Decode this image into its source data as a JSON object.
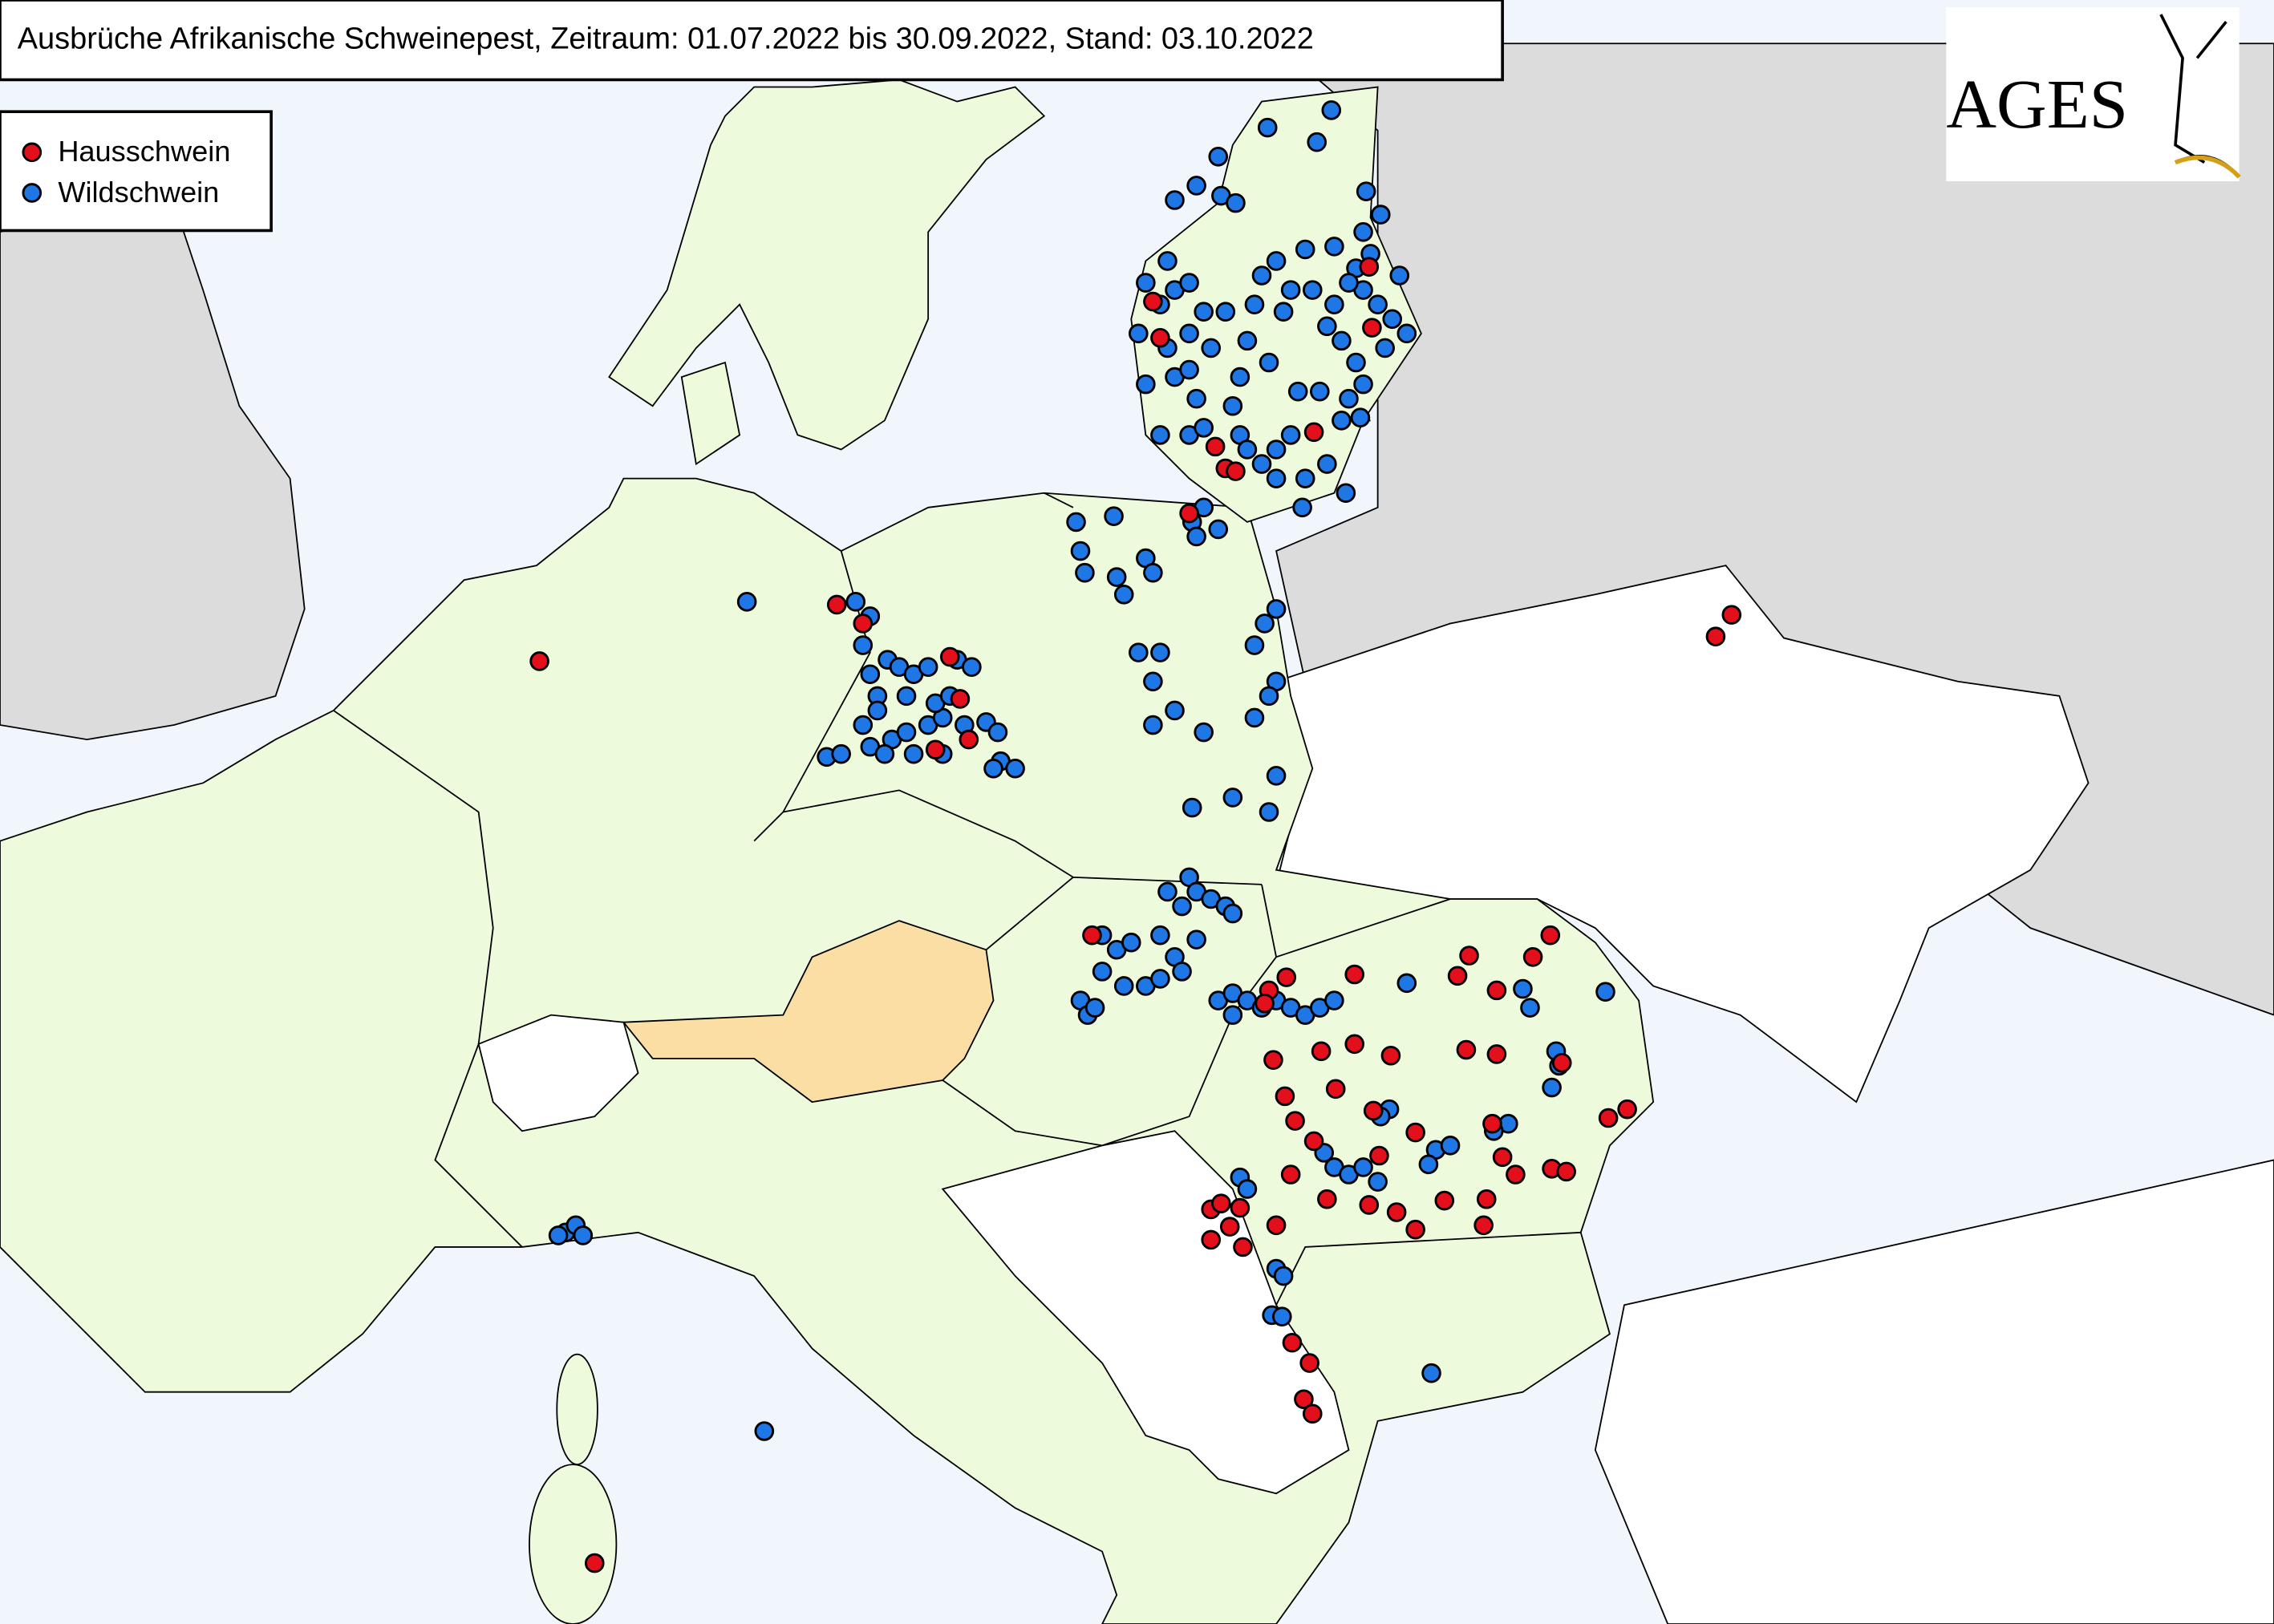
{
  "header": {
    "title": "Ausbrüche Afrikanische Schweinepest, Zeitraum: 01.07.2022 bis 30.09.2022, Stand: 03.10.2022"
  },
  "legend": {
    "items": [
      {
        "label": "Hausschwein",
        "color": "#e3101b"
      },
      {
        "label": "Wildschwein",
        "color": "#1f77e6"
      }
    ]
  },
  "logo": {
    "text": "AGES"
  }
}
